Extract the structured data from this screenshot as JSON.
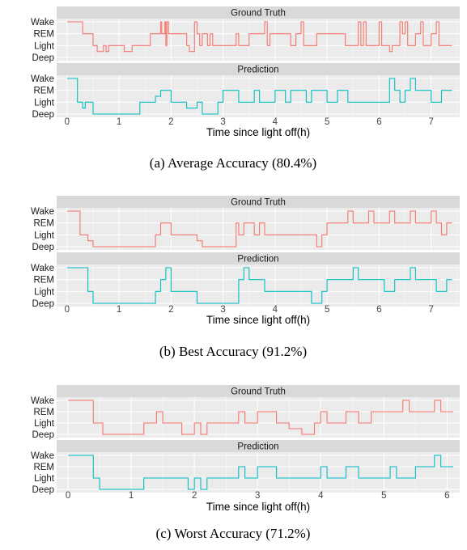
{
  "colors": {
    "truth": "#F8766D",
    "prediction": "#00BFC4",
    "panel_bg": "#EBEBEB",
    "strip_bg": "#D9D9D9",
    "grid": "#FFFFFF",
    "text": "#1A1A1A"
  },
  "chart_data": [
    {
      "type": "line",
      "interpolation": "step",
      "caption": "(a)  Average Accuracy (80.4%)",
      "xlabel": "Time since light off(h)",
      "ylabel": "",
      "xlim": [
        -0.2,
        7.55
      ],
      "xticks": [
        0,
        1,
        2,
        3,
        4,
        5,
        6,
        7
      ],
      "ylim": [
        1,
        4
      ],
      "yticks": [
        "Deep",
        "Light",
        "REM",
        "Wake"
      ],
      "grid": true,
      "legend": "none",
      "facets": [
        {
          "name": "Ground Truth",
          "color": "truth",
          "points": [
            [
              0,
              4
            ],
            [
              0.3,
              3
            ],
            [
              0.5,
              2
            ],
            [
              0.58,
              1.5
            ],
            [
              0.7,
              2
            ],
            [
              0.75,
              1.5
            ],
            [
              0.8,
              2
            ],
            [
              1.1,
              1.5
            ],
            [
              1.25,
              2
            ],
            [
              1.5,
              2
            ],
            [
              1.6,
              3
            ],
            [
              1.8,
              4
            ],
            [
              1.82,
              3
            ],
            [
              1.85,
              3
            ],
            [
              1.88,
              4
            ],
            [
              1.9,
              2
            ],
            [
              1.92,
              4
            ],
            [
              1.95,
              3
            ],
            [
              2.1,
              3
            ],
            [
              2.3,
              2
            ],
            [
              2.35,
              1.5
            ],
            [
              2.45,
              4
            ],
            [
              2.5,
              3
            ],
            [
              2.55,
              2
            ],
            [
              2.6,
              3
            ],
            [
              2.7,
              2
            ],
            [
              2.75,
              3
            ],
            [
              2.8,
              2
            ],
            [
              3.25,
              3
            ],
            [
              3.3,
              2
            ],
            [
              3.5,
              3
            ],
            [
              3.8,
              4
            ],
            [
              3.85,
              2
            ],
            [
              3.9,
              3
            ],
            [
              4.2,
              3
            ],
            [
              4.3,
              2
            ],
            [
              4.4,
              3
            ],
            [
              4.5,
              4
            ],
            [
              4.55,
              2
            ],
            [
              4.8,
              3
            ],
            [
              5.3,
              3
            ],
            [
              5.35,
              2
            ],
            [
              5.6,
              4
            ],
            [
              5.65,
              2
            ],
            [
              5.7,
              4
            ],
            [
              5.75,
              2
            ],
            [
              6.0,
              4
            ],
            [
              6.05,
              2
            ],
            [
              6.2,
              1.5
            ],
            [
              6.25,
              2
            ],
            [
              6.4,
              4
            ],
            [
              6.45,
              3
            ],
            [
              6.5,
              4
            ],
            [
              6.55,
              2
            ],
            [
              6.7,
              3
            ],
            [
              6.8,
              4
            ],
            [
              6.85,
              2
            ],
            [
              7.0,
              3
            ],
            [
              7.1,
              4
            ],
            [
              7.15,
              2
            ],
            [
              7.4,
              2
            ]
          ]
        },
        {
          "name": "Prediction",
          "color": "prediction",
          "points": [
            [
              0,
              4
            ],
            [
              0.1,
              4
            ],
            [
              0.2,
              2
            ],
            [
              0.3,
              1.5
            ],
            [
              0.35,
              2
            ],
            [
              0.5,
              1
            ],
            [
              1.2,
              1
            ],
            [
              1.4,
              2
            ],
            [
              1.6,
              2
            ],
            [
              1.7,
              2.5
            ],
            [
              1.8,
              3
            ],
            [
              2.0,
              2
            ],
            [
              2.3,
              1.5
            ],
            [
              2.5,
              2
            ],
            [
              2.6,
              1
            ],
            [
              2.9,
              2
            ],
            [
              3.0,
              3
            ],
            [
              3.3,
              2
            ],
            [
              3.6,
              3
            ],
            [
              3.7,
              2
            ],
            [
              4.0,
              3
            ],
            [
              4.2,
              2
            ],
            [
              4.3,
              3
            ],
            [
              4.6,
              2
            ],
            [
              4.7,
              3
            ],
            [
              5.0,
              2
            ],
            [
              5.2,
              3
            ],
            [
              5.4,
              2
            ],
            [
              5.7,
              2
            ],
            [
              6.0,
              2
            ],
            [
              6.2,
              4
            ],
            [
              6.3,
              3
            ],
            [
              6.4,
              2
            ],
            [
              6.5,
              3
            ],
            [
              6.6,
              4
            ],
            [
              6.7,
              3
            ],
            [
              6.9,
              3
            ],
            [
              7.0,
              2
            ],
            [
              7.2,
              3
            ],
            [
              7.4,
              3
            ]
          ]
        }
      ]
    },
    {
      "type": "line",
      "interpolation": "step",
      "caption": "(b)  Best Accuracy (91.2%)",
      "xlabel": "Time since light off(h)",
      "ylabel": "",
      "xlim": [
        -0.2,
        7.55
      ],
      "xticks": [
        0,
        1,
        2,
        3,
        4,
        5,
        6,
        7
      ],
      "ylim": [
        1,
        4
      ],
      "yticks": [
        "Deep",
        "Light",
        "REM",
        "Wake"
      ],
      "grid": true,
      "legend": "none",
      "facets": [
        {
          "name": "Ground Truth",
          "color": "truth",
          "points": [
            [
              0,
              4
            ],
            [
              0.2,
              4
            ],
            [
              0.25,
              2
            ],
            [
              0.4,
              1.5
            ],
            [
              0.5,
              1
            ],
            [
              1.6,
              1
            ],
            [
              1.7,
              2
            ],
            [
              1.8,
              3
            ],
            [
              1.9,
              3
            ],
            [
              2.0,
              2
            ],
            [
              2.3,
              2
            ],
            [
              2.5,
              1.5
            ],
            [
              2.6,
              1
            ],
            [
              3.2,
              1
            ],
            [
              3.25,
              3
            ],
            [
              3.3,
              2
            ],
            [
              3.4,
              3
            ],
            [
              3.6,
              2
            ],
            [
              3.7,
              3
            ],
            [
              3.8,
              2
            ],
            [
              4.7,
              2
            ],
            [
              4.8,
              1
            ],
            [
              4.9,
              2
            ],
            [
              5.0,
              3
            ],
            [
              5.3,
              3
            ],
            [
              5.4,
              4
            ],
            [
              5.5,
              3
            ],
            [
              5.7,
              3
            ],
            [
              5.8,
              4
            ],
            [
              5.9,
              3
            ],
            [
              6.1,
              3
            ],
            [
              6.2,
              4
            ],
            [
              6.3,
              3
            ],
            [
              6.5,
              3
            ],
            [
              6.6,
              4
            ],
            [
              6.7,
              3
            ],
            [
              6.9,
              3
            ],
            [
              7.0,
              4
            ],
            [
              7.1,
              3
            ],
            [
              7.2,
              2
            ],
            [
              7.3,
              3
            ],
            [
              7.4,
              3
            ]
          ]
        },
        {
          "name": "Prediction",
          "color": "prediction",
          "points": [
            [
              0,
              4
            ],
            [
              0.3,
              4
            ],
            [
              0.4,
              2
            ],
            [
              0.5,
              1
            ],
            [
              1.6,
              1
            ],
            [
              1.7,
              2
            ],
            [
              1.8,
              3
            ],
            [
              1.9,
              4
            ],
            [
              2.0,
              2
            ],
            [
              2.5,
              1
            ],
            [
              3.2,
              1
            ],
            [
              3.3,
              3
            ],
            [
              3.4,
              4
            ],
            [
              3.5,
              3
            ],
            [
              3.7,
              3
            ],
            [
              3.8,
              2
            ],
            [
              4.7,
              1
            ],
            [
              4.9,
              2
            ],
            [
              5.0,
              3
            ],
            [
              5.3,
              3
            ],
            [
              5.5,
              4
            ],
            [
              5.6,
              3
            ],
            [
              5.8,
              3
            ],
            [
              6.0,
              3
            ],
            [
              6.1,
              2
            ],
            [
              6.3,
              3
            ],
            [
              6.5,
              3
            ],
            [
              6.6,
              4
            ],
            [
              6.7,
              3
            ],
            [
              7.0,
              3
            ],
            [
              7.1,
              2
            ],
            [
              7.3,
              3
            ],
            [
              7.4,
              3
            ]
          ]
        }
      ]
    },
    {
      "type": "line",
      "interpolation": "step",
      "caption": "(c)  Worst Accuracy (71.2%)",
      "xlabel": "Time since light off(h)",
      "ylabel": "",
      "xlim": [
        -0.18,
        6.2
      ],
      "xticks": [
        0,
        1,
        2,
        3,
        4,
        5,
        6
      ],
      "ylim": [
        1,
        4
      ],
      "yticks": [
        "Deep",
        "Light",
        "REM",
        "Wake"
      ],
      "grid": true,
      "legend": "none",
      "facets": [
        {
          "name": "Ground Truth",
          "color": "truth",
          "points": [
            [
              0,
              4
            ],
            [
              0.3,
              4
            ],
            [
              0.4,
              2
            ],
            [
              0.55,
              1
            ],
            [
              1.1,
              1
            ],
            [
              1.2,
              2
            ],
            [
              1.4,
              3
            ],
            [
              1.5,
              2
            ],
            [
              1.7,
              2
            ],
            [
              1.8,
              1
            ],
            [
              2.0,
              2
            ],
            [
              2.1,
              1
            ],
            [
              2.2,
              2
            ],
            [
              2.6,
              2
            ],
            [
              2.7,
              3
            ],
            [
              2.8,
              2
            ],
            [
              3.0,
              3
            ],
            [
              3.3,
              2
            ],
            [
              3.5,
              1.5
            ],
            [
              3.7,
              1
            ],
            [
              3.9,
              2
            ],
            [
              4.0,
              3
            ],
            [
              4.1,
              2
            ],
            [
              4.4,
              3
            ],
            [
              4.6,
              2
            ],
            [
              4.8,
              3
            ],
            [
              5.0,
              3
            ],
            [
              5.2,
              3
            ],
            [
              5.3,
              4
            ],
            [
              5.4,
              3
            ],
            [
              5.7,
              3
            ],
            [
              5.8,
              4
            ],
            [
              5.9,
              3
            ],
            [
              6.1,
              3
            ]
          ]
        },
        {
          "name": "Prediction",
          "color": "prediction",
          "points": [
            [
              0,
              4
            ],
            [
              0.3,
              4
            ],
            [
              0.4,
              2
            ],
            [
              0.5,
              1
            ],
            [
              1.1,
              1
            ],
            [
              1.2,
              2
            ],
            [
              1.8,
              2
            ],
            [
              1.9,
              1
            ],
            [
              2.0,
              2
            ],
            [
              2.1,
              1
            ],
            [
              2.2,
              2
            ],
            [
              2.6,
              2
            ],
            [
              2.7,
              3
            ],
            [
              2.8,
              2
            ],
            [
              3.0,
              3
            ],
            [
              3.3,
              2
            ],
            [
              3.9,
              2
            ],
            [
              4.0,
              3
            ],
            [
              4.1,
              2
            ],
            [
              4.4,
              3
            ],
            [
              4.6,
              2
            ],
            [
              4.8,
              2
            ],
            [
              5.0,
              2
            ],
            [
              5.1,
              3
            ],
            [
              5.2,
              2
            ],
            [
              5.5,
              3
            ],
            [
              5.7,
              3
            ],
            [
              5.8,
              4
            ],
            [
              5.9,
              3
            ],
            [
              6.1,
              3
            ]
          ]
        }
      ]
    }
  ]
}
